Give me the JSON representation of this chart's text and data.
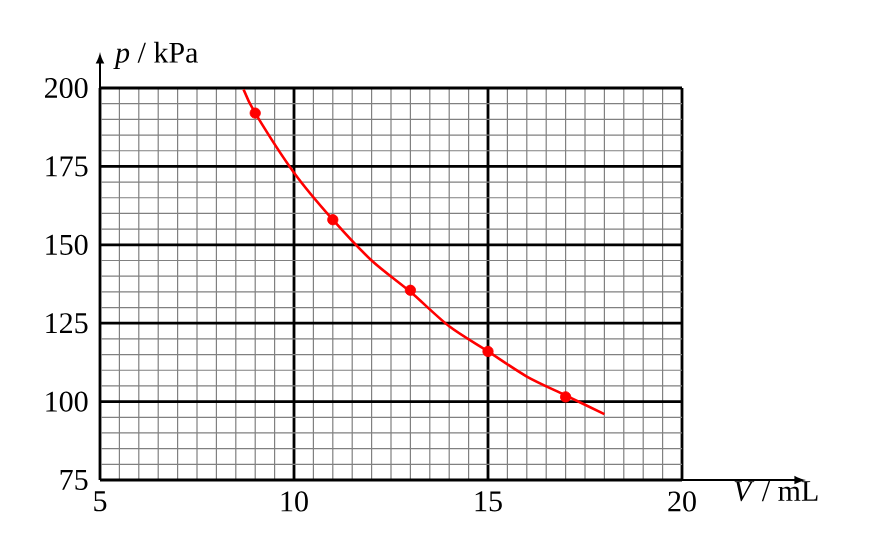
{
  "chart_data": {
    "type": "scatter",
    "xlabel": "*V* / mL",
    "ylabel": "*p* / kPa",
    "xlim": [
      5,
      20
    ],
    "ylim": [
      75,
      200
    ],
    "xticks": [
      5,
      10,
      15,
      20
    ],
    "yticks": [
      75,
      100,
      125,
      150,
      175,
      200
    ],
    "grid": true,
    "series": [
      {
        "color": "#ff0000",
        "marker": "circle",
        "x": [
          9,
          11,
          13,
          15,
          17
        ],
        "values": [
          192,
          158,
          135.5,
          116,
          101.5
        ]
      },
      {
        "type": "line",
        "color": "#ff0000",
        "marker": "none",
        "line_style": "solid",
        "x": [
          8.7,
          9,
          10,
          11,
          12,
          13,
          14,
          15,
          16,
          17,
          18
        ],
        "values": [
          199.5,
          192,
          173,
          158,
          145,
          135,
          124,
          116,
          108,
          102,
          96
        ]
      }
    ]
  }
}
